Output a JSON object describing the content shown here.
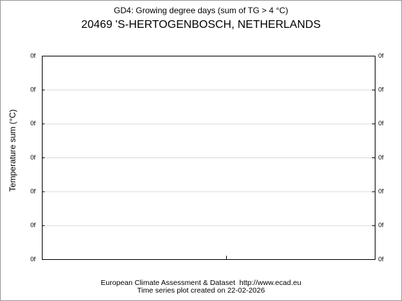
{
  "title": "GD4: Growing degree days (sum of TG > 4 °C)",
  "subtitle": "20469 'S-HERTOGENBOSCH, NETHERLANDS",
  "y_axis_label": "Temperature sum (°C)",
  "left_ticks": [
    "0f",
    "0f",
    "0f",
    "0f",
    "0f",
    "0f",
    "0f"
  ],
  "right_ticks": [
    "0f",
    "0f",
    "0f",
    "0f",
    "0f",
    "0f",
    "0f"
  ],
  "footer": [
    "European Climate Assessment & Dataset  http://www.ecad.eu",
    "Time series plot created on 22-02-2026"
  ]
}
